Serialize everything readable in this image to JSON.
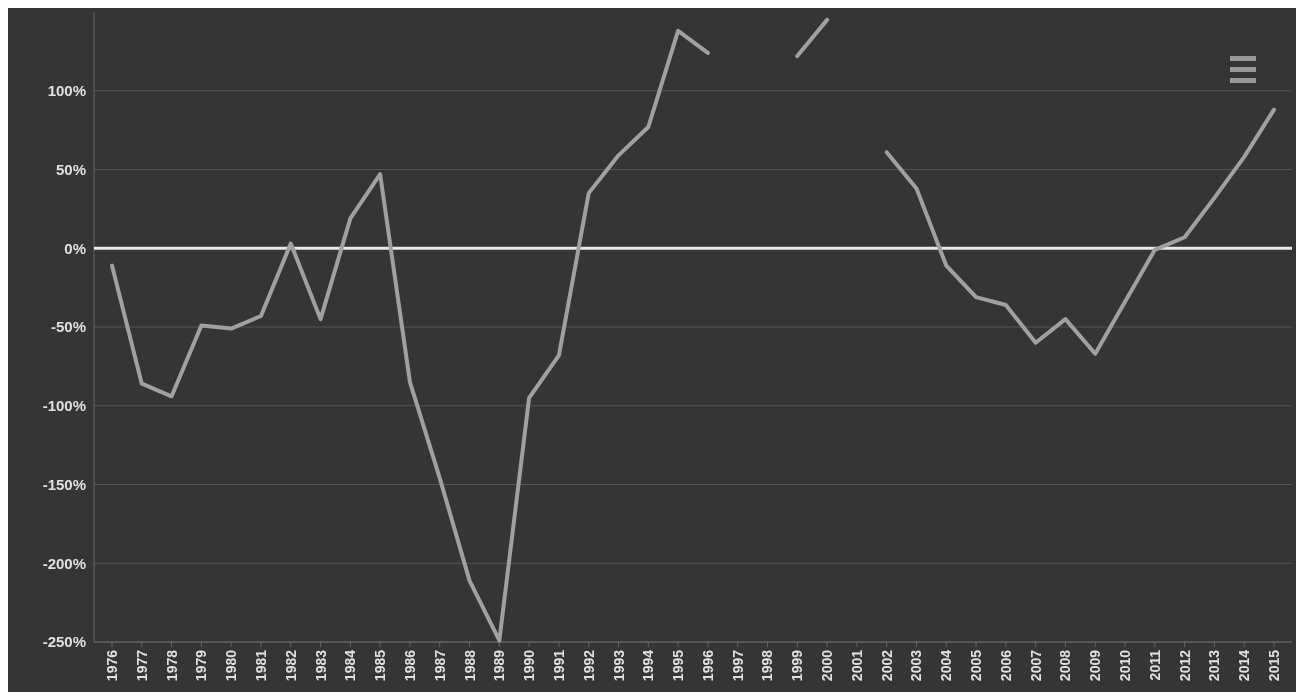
{
  "chart_data": {
    "type": "line",
    "categories": [
      "1976",
      "1977",
      "1978",
      "1979",
      "1980",
      "1981",
      "1982",
      "1983",
      "1984",
      "1985",
      "1986",
      "1987",
      "1988",
      "1989",
      "1990",
      "1991",
      "1992",
      "1993",
      "1994",
      "1995",
      "1996",
      "1997",
      "1998",
      "1999",
      "2000",
      "2001",
      "2002",
      "2003",
      "2004",
      "2005",
      "2006",
      "2007",
      "2008",
      "2009",
      "2010",
      "2011",
      "2012",
      "2013",
      "2014",
      "2015"
    ],
    "series": [
      {
        "color": "#a0a0a0",
        "values": [
          -11,
          -86,
          -94,
          -49,
          -51,
          -43,
          3,
          -45,
          19,
          47,
          -85,
          -146,
          -211,
          -249,
          -95,
          -68,
          35,
          59,
          77,
          138,
          124,
          null,
          null,
          122,
          145,
          null,
          61,
          38,
          -11,
          -31,
          -36,
          -60,
          -45,
          -67,
          -34,
          -1,
          7,
          32,
          58,
          88
        ]
      }
    ],
    "ylim": [
      -250,
      150
    ],
    "yticks": [
      {
        "value": -250,
        "label": "-250%"
      },
      {
        "value": -200,
        "label": "-200%"
      },
      {
        "value": -150,
        "label": "-150%"
      },
      {
        "value": -100,
        "label": "-100%"
      },
      {
        "value": -50,
        "label": "-50%"
      },
      {
        "value": 0,
        "label": "0%"
      },
      {
        "value": 50,
        "label": "50%"
      },
      {
        "value": 100,
        "label": "100%"
      }
    ],
    "grid": "y",
    "marker": "none",
    "line_style": "solid",
    "ref_lines": [
      {
        "axis": "y",
        "value": 0,
        "color": "#e8e8e8"
      }
    ]
  }
}
